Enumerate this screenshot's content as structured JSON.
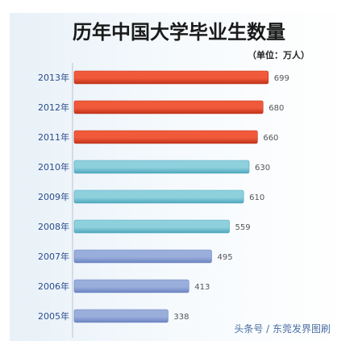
{
  "colors": {
    "highlight": "#f05a3a",
    "highlight_dark": "#c0331a",
    "recent": "#8fd0dd",
    "recent_dark": "#4fa7bd",
    "older": "#9aaedc",
    "older_dark": "#6b83c0",
    "bg_band": "#dbeaf4"
  },
  "chart_data": {
    "type": "bar",
    "title": "历年中国大学毕业生数量",
    "unit_label": "（单位：万人）",
    "categories": [
      "2013年",
      "2012年",
      "2011年",
      "2010年",
      "2009年",
      "2008年",
      "2007年",
      "2006年",
      "2005年"
    ],
    "values": [
      699,
      680,
      660,
      630,
      610,
      559,
      495,
      413,
      338
    ],
    "value_labels": [
      "699",
      "680",
      "660",
      "630",
      "610",
      "559",
      "495",
      "413",
      "338"
    ],
    "color_groups": [
      "highlight",
      "highlight",
      "highlight",
      "recent",
      "recent",
      "recent",
      "older",
      "older",
      "older"
    ],
    "xlim": [
      0,
      720
    ],
    "orientation": "horizontal",
    "grid": false,
    "legend": "none"
  },
  "watermark": "头条号 / 东莞发界图刷"
}
